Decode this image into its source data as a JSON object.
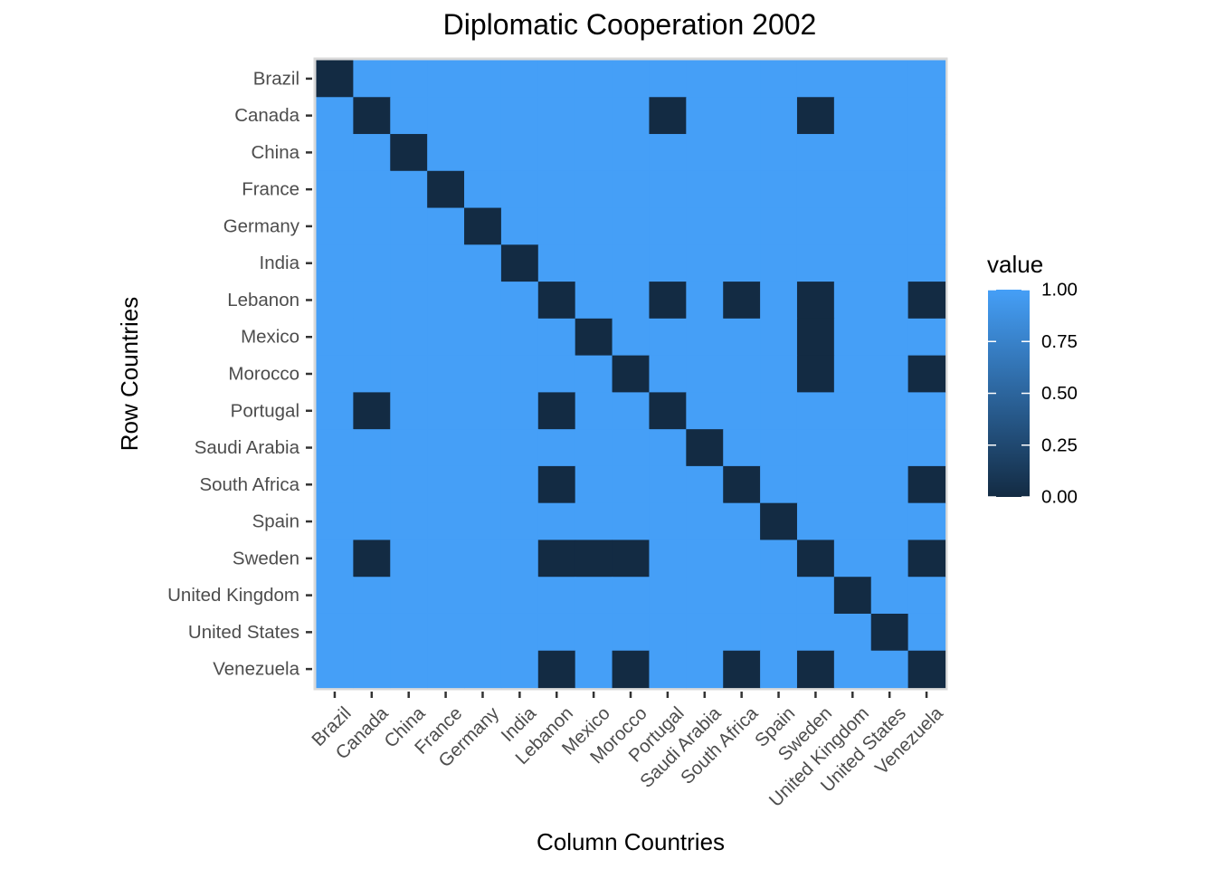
{
  "chart_data": {
    "type": "heatmap",
    "title": "Diplomatic Cooperation 2002",
    "xlabel": "Column Countries",
    "ylabel": "Row Countries",
    "categories_x": [
      "Brazil",
      "Canada",
      "China",
      "France",
      "Germany",
      "India",
      "Lebanon",
      "Mexico",
      "Morocco",
      "Portugal",
      "Saudi Arabia",
      "South Africa",
      "Spain",
      "Sweden",
      "United Kingdom",
      "United States",
      "Venezuela"
    ],
    "categories_y": [
      "Brazil",
      "Canada",
      "China",
      "France",
      "Germany",
      "India",
      "Lebanon",
      "Mexico",
      "Morocco",
      "Portugal",
      "Saudi Arabia",
      "South Africa",
      "Spain",
      "Sweden",
      "United Kingdom",
      "United States",
      "Venezuela"
    ],
    "values": [
      [
        0,
        1,
        1,
        1,
        1,
        1,
        1,
        1,
        1,
        1,
        1,
        1,
        1,
        1,
        1,
        1,
        1
      ],
      [
        1,
        0,
        1,
        1,
        1,
        1,
        1,
        1,
        1,
        0,
        1,
        1,
        1,
        0,
        1,
        1,
        1
      ],
      [
        1,
        1,
        0,
        1,
        1,
        1,
        1,
        1,
        1,
        1,
        1,
        1,
        1,
        1,
        1,
        1,
        1
      ],
      [
        1,
        1,
        1,
        0,
        1,
        1,
        1,
        1,
        1,
        1,
        1,
        1,
        1,
        1,
        1,
        1,
        1
      ],
      [
        1,
        1,
        1,
        1,
        0,
        1,
        1,
        1,
        1,
        1,
        1,
        1,
        1,
        1,
        1,
        1,
        1
      ],
      [
        1,
        1,
        1,
        1,
        1,
        0,
        1,
        1,
        1,
        1,
        1,
        1,
        1,
        1,
        1,
        1,
        1
      ],
      [
        1,
        1,
        1,
        1,
        1,
        1,
        0,
        1,
        1,
        0,
        1,
        0,
        1,
        0,
        1,
        1,
        0
      ],
      [
        1,
        1,
        1,
        1,
        1,
        1,
        1,
        0,
        1,
        1,
        1,
        1,
        1,
        0,
        1,
        1,
        1
      ],
      [
        1,
        1,
        1,
        1,
        1,
        1,
        1,
        1,
        0,
        1,
        1,
        1,
        1,
        0,
        1,
        1,
        0
      ],
      [
        1,
        0,
        1,
        1,
        1,
        1,
        0,
        1,
        1,
        0,
        1,
        1,
        1,
        1,
        1,
        1,
        1
      ],
      [
        1,
        1,
        1,
        1,
        1,
        1,
        1,
        1,
        1,
        1,
        0,
        1,
        1,
        1,
        1,
        1,
        1
      ],
      [
        1,
        1,
        1,
        1,
        1,
        1,
        0,
        1,
        1,
        1,
        1,
        0,
        1,
        1,
        1,
        1,
        0
      ],
      [
        1,
        1,
        1,
        1,
        1,
        1,
        1,
        1,
        1,
        1,
        1,
        1,
        0,
        1,
        1,
        1,
        1
      ],
      [
        1,
        0,
        1,
        1,
        1,
        1,
        0,
        0,
        0,
        1,
        1,
        1,
        1,
        0,
        1,
        1,
        0
      ],
      [
        1,
        1,
        1,
        1,
        1,
        1,
        1,
        1,
        1,
        1,
        1,
        1,
        1,
        1,
        0,
        1,
        1
      ],
      [
        1,
        1,
        1,
        1,
        1,
        1,
        1,
        1,
        1,
        1,
        1,
        1,
        1,
        1,
        1,
        0,
        1
      ],
      [
        1,
        1,
        1,
        1,
        1,
        1,
        0,
        1,
        0,
        1,
        1,
        0,
        1,
        0,
        1,
        1,
        0
      ]
    ],
    "color_scale": {
      "low": "#132b43",
      "high": "#459ff7",
      "range": [
        0,
        1
      ]
    },
    "legend": {
      "title": "value",
      "position": "right",
      "ticks": [
        1.0,
        0.75,
        0.5,
        0.25,
        0.0
      ],
      "tick_labels": [
        "1.00",
        "0.75",
        "0.50",
        "0.25",
        "0.00"
      ]
    },
    "grid": false
  }
}
